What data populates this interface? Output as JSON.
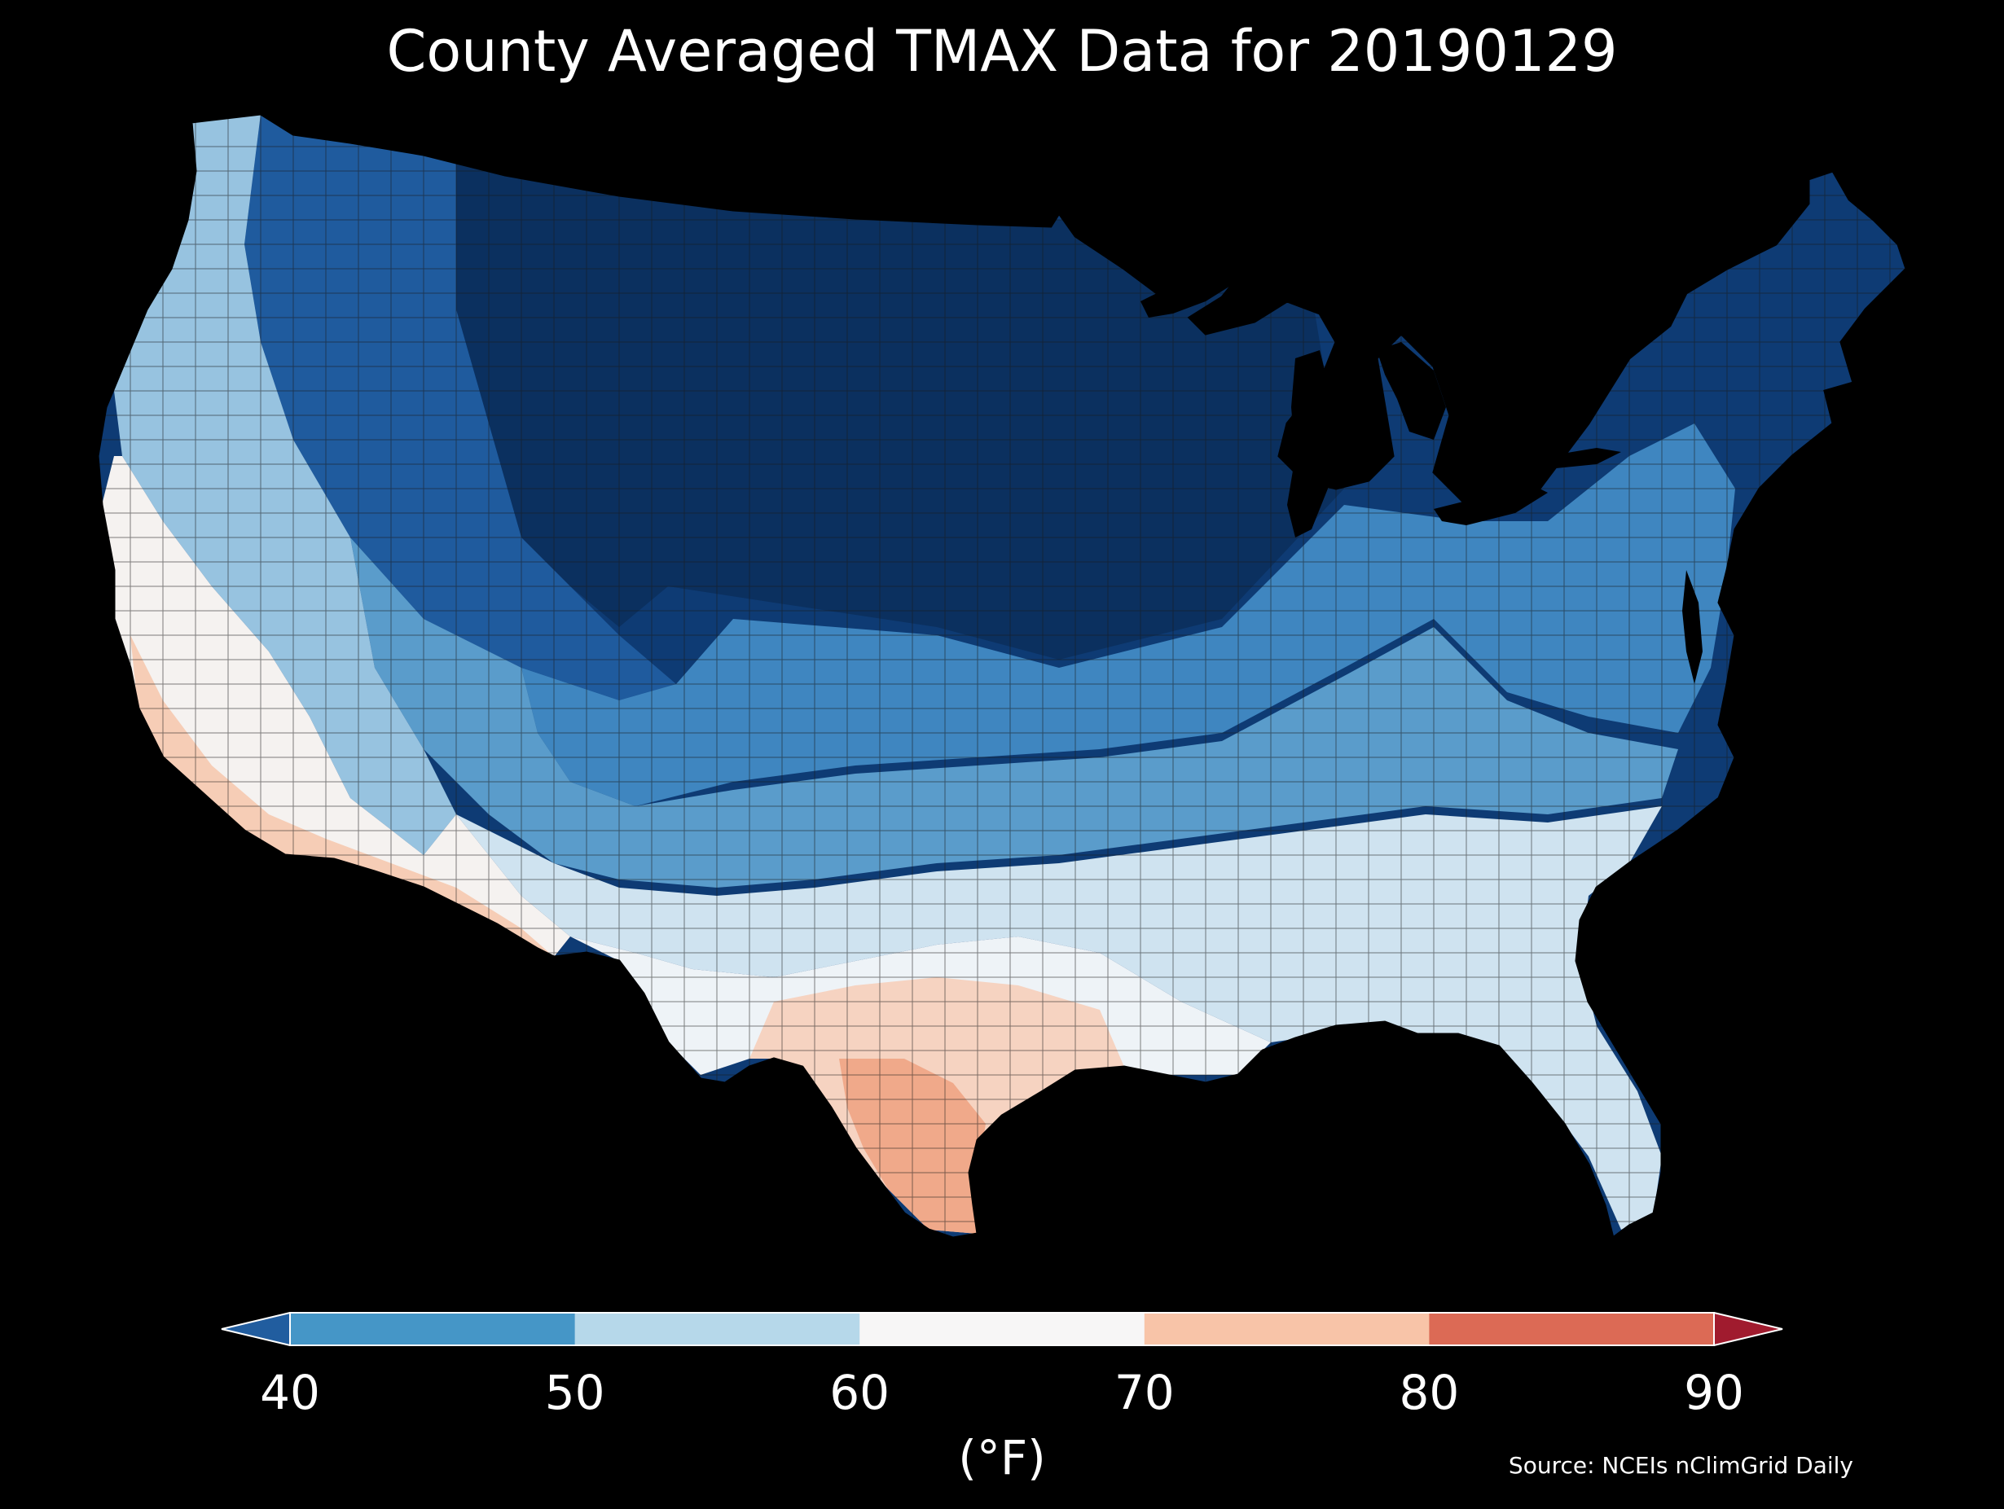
{
  "title": "County Averaged TMAX Data for 20190129",
  "map": {
    "region": "Contiguous United States",
    "background_color": "#000000",
    "county_border_color": "#1a1a1a",
    "regions": [
      {
        "name": "northern-plains-core",
        "value_band": "<40",
        "color": "#0b305f"
      },
      {
        "name": "northeast-great-lakes",
        "value_band": "<40",
        "color": "#0e3b74"
      },
      {
        "name": "northern-rockies",
        "value_band": "<40",
        "color": "#1f5b9e"
      },
      {
        "name": "mid-atlantic-ohio-valley",
        "value_band": "40-50",
        "color": "#3f86c0"
      },
      {
        "name": "central-plains-appalachia",
        "value_band": "40-50",
        "color": "#5a9ccb"
      },
      {
        "name": "pacific-northwest-coast",
        "value_band": "50-60",
        "color": "#97c3e0"
      },
      {
        "name": "southern-plains-southeast",
        "value_band": "50-60",
        "color": "#cfe3f0"
      },
      {
        "name": "gulf-coast-southeast",
        "value_band": "60-70",
        "color": "#eef3f7"
      },
      {
        "name": "california-nevada",
        "value_band": "60-70",
        "color": "#f5f2f0"
      },
      {
        "name": "southwest-desert",
        "value_band": "70-80",
        "color": "#f6cdb6"
      },
      {
        "name": "south-texas",
        "value_band": "70-80",
        "color": "#f0a98a"
      }
    ]
  },
  "colorbar": {
    "ticks": [
      "40",
      "50",
      "60",
      "70",
      "80",
      "90"
    ],
    "extend": "both",
    "under_color": "#215d9f",
    "over_color": "#a01b2e",
    "bins": [
      {
        "range": "40-50",
        "color": "#4596c7"
      },
      {
        "range": "50-60",
        "color": "#b6d8ea"
      },
      {
        "range": "60-70",
        "color": "#f7f6f6"
      },
      {
        "range": "70-80",
        "color": "#f8c4a8"
      },
      {
        "range": "80-90",
        "color": "#dc6a55"
      }
    ],
    "units": "(°F)"
  },
  "source": "Source: NCEIs nClimGrid Daily"
}
